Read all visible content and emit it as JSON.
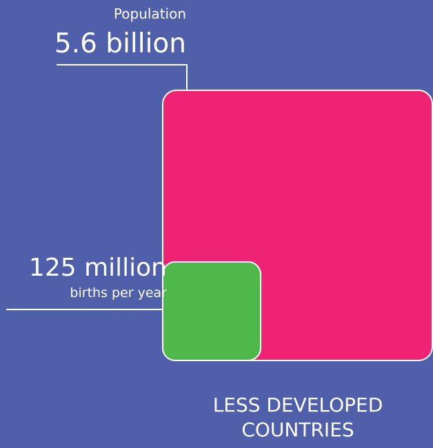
{
  "colors": {
    "background": "#4f5fa9",
    "population_square": "#ee2374",
    "births_square": "#4fb84b",
    "lines": "#ffffff"
  },
  "chart_data": {
    "type": "area",
    "region": "LESS DEVELOPED COUNTRIES",
    "series": [
      {
        "name": "Population",
        "value": 5600000000,
        "value_label": "5.6 billion",
        "color": "#ee2374"
      },
      {
        "name": "births per year",
        "value": 125000000,
        "value_label": "125 million",
        "color": "#4fb84b"
      }
    ]
  }
}
